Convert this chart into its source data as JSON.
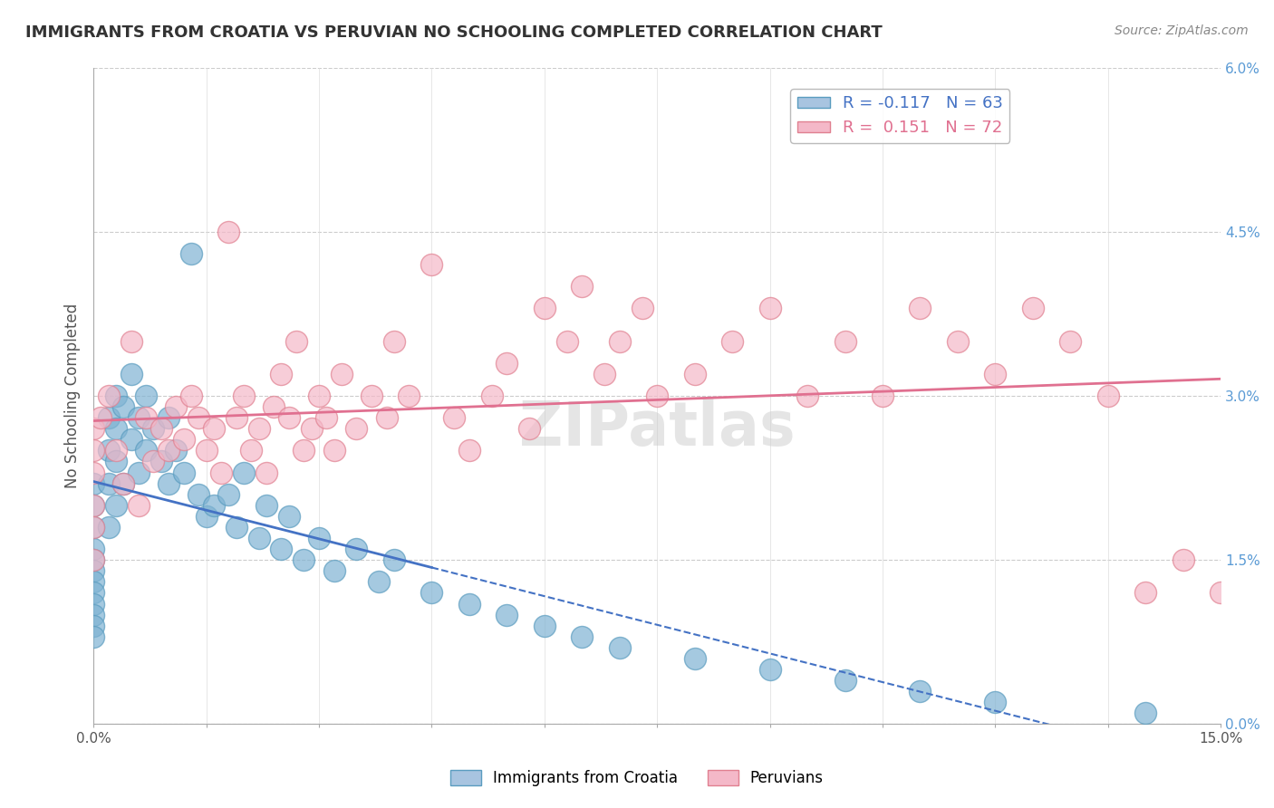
{
  "title": "IMMIGRANTS FROM CROATIA VS PERUVIAN NO SCHOOLING COMPLETED CORRELATION CHART",
  "source": "Source: ZipAtlas.com",
  "xlabel": "",
  "ylabel": "No Schooling Completed",
  "xlim": [
    0.0,
    15.0
  ],
  "ylim": [
    0.0,
    6.0
  ],
  "xticks": [
    0.0,
    1.5,
    3.0,
    4.5,
    6.0,
    7.5,
    9.0,
    10.5,
    12.0,
    13.5,
    15.0
  ],
  "yticks": [
    0.0,
    1.5,
    3.0,
    4.5,
    6.0
  ],
  "ytick_labels": [
    "0.0%",
    "1.5%",
    "3.0%",
    "4.5%",
    "6.0%"
  ],
  "xtick_labels": [
    "0.0%",
    "",
    "",
    "",
    "",
    "",
    "",
    "",
    "",
    "",
    "15.0%"
  ],
  "legend_entries": [
    {
      "label": "R = -0.117   N = 63",
      "color": "#a8c4e0"
    },
    {
      "label": "R =  0.151   N = 72",
      "color": "#f4b8c8"
    }
  ],
  "series_blue": {
    "name": "Immigrants from Croatia",
    "color": "#7fb3d3",
    "edge_color": "#5a9cbf",
    "R": -0.117,
    "N": 63,
    "x": [
      0.0,
      0.0,
      0.0,
      0.0,
      0.0,
      0.0,
      0.0,
      0.0,
      0.0,
      0.0,
      0.0,
      0.0,
      0.2,
      0.2,
      0.2,
      0.2,
      0.3,
      0.3,
      0.3,
      0.3,
      0.4,
      0.4,
      0.5,
      0.5,
      0.6,
      0.6,
      0.7,
      0.7,
      0.8,
      0.9,
      1.0,
      1.0,
      1.1,
      1.2,
      1.3,
      1.4,
      1.5,
      1.6,
      1.8,
      1.9,
      2.0,
      2.2,
      2.3,
      2.5,
      2.6,
      2.8,
      3.0,
      3.2,
      3.5,
      3.8,
      4.0,
      4.5,
      5.0,
      5.5,
      6.0,
      6.5,
      7.0,
      8.0,
      9.0,
      10.0,
      11.0,
      12.0,
      14.0
    ],
    "y": [
      2.2,
      2.0,
      1.8,
      1.6,
      1.5,
      1.4,
      1.3,
      1.2,
      1.1,
      1.0,
      0.9,
      0.8,
      2.8,
      2.5,
      2.2,
      1.8,
      3.0,
      2.7,
      2.4,
      2.0,
      2.9,
      2.2,
      3.2,
      2.6,
      2.8,
      2.3,
      3.0,
      2.5,
      2.7,
      2.4,
      2.8,
      2.2,
      2.5,
      2.3,
      4.3,
      2.1,
      1.9,
      2.0,
      2.1,
      1.8,
      2.3,
      1.7,
      2.0,
      1.6,
      1.9,
      1.5,
      1.7,
      1.4,
      1.6,
      1.3,
      1.5,
      1.2,
      1.1,
      1.0,
      0.9,
      0.8,
      0.7,
      0.6,
      0.5,
      0.4,
      0.3,
      0.2,
      0.1
    ]
  },
  "series_pink": {
    "name": "Peruvians",
    "color": "#f4b8c8",
    "edge_color": "#e08090",
    "R": 0.151,
    "N": 72,
    "x": [
      0.0,
      0.0,
      0.0,
      0.0,
      0.0,
      0.0,
      0.1,
      0.2,
      0.3,
      0.4,
      0.5,
      0.6,
      0.7,
      0.8,
      0.9,
      1.0,
      1.1,
      1.2,
      1.3,
      1.4,
      1.5,
      1.6,
      1.7,
      1.8,
      1.9,
      2.0,
      2.1,
      2.2,
      2.3,
      2.4,
      2.5,
      2.6,
      2.7,
      2.8,
      2.9,
      3.0,
      3.1,
      3.2,
      3.3,
      3.5,
      3.7,
      3.9,
      4.0,
      4.2,
      4.5,
      4.8,
      5.0,
      5.3,
      5.5,
      5.8,
      6.0,
      6.3,
      6.5,
      6.8,
      7.0,
      7.3,
      7.5,
      8.0,
      8.5,
      9.0,
      9.5,
      10.0,
      10.5,
      11.0,
      11.5,
      12.0,
      12.5,
      13.0,
      13.5,
      14.0,
      14.5,
      15.0
    ],
    "y": [
      2.7,
      2.5,
      2.3,
      2.0,
      1.8,
      1.5,
      2.8,
      3.0,
      2.5,
      2.2,
      3.5,
      2.0,
      2.8,
      2.4,
      2.7,
      2.5,
      2.9,
      2.6,
      3.0,
      2.8,
      2.5,
      2.7,
      2.3,
      4.5,
      2.8,
      3.0,
      2.5,
      2.7,
      2.3,
      2.9,
      3.2,
      2.8,
      3.5,
      2.5,
      2.7,
      3.0,
      2.8,
      2.5,
      3.2,
      2.7,
      3.0,
      2.8,
      3.5,
      3.0,
      4.2,
      2.8,
      2.5,
      3.0,
      3.3,
      2.7,
      3.8,
      3.5,
      4.0,
      3.2,
      3.5,
      3.8,
      3.0,
      3.2,
      3.5,
      3.8,
      3.0,
      3.5,
      3.0,
      3.8,
      3.5,
      3.2,
      3.8,
      3.5,
      3.0,
      1.2,
      1.5,
      1.2
    ]
  },
  "blue_line_color": "#4472c4",
  "pink_line_color": "#e07090",
  "grid_color": "#cccccc",
  "watermark": "ZIPatlas",
  "background_color": "#ffffff",
  "title_color": "#333333",
  "axis_color": "#666666"
}
